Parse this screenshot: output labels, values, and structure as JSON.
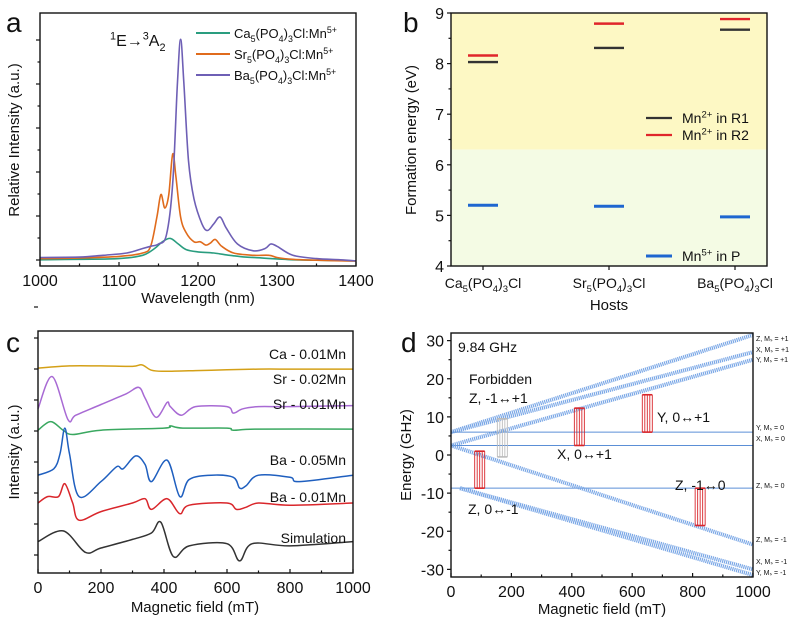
{
  "chart_data": [
    {
      "panel": "a",
      "type": "line",
      "title": "",
      "xlabel": "Wavelength (nm)",
      "ylabel": "Relative Intensity (a.u.)",
      "xlim": [
        1000,
        1400
      ],
      "ylim": [
        0,
        1.0
      ],
      "xticks": [
        "1000",
        "1100",
        "1200",
        "1300",
        "1400"
      ],
      "annotation": "¹E→³A₂",
      "legend_position": "top-right",
      "series": [
        {
          "name": "Ca5(PO4)3Cl:Mn5+",
          "color": "#2a9d7f",
          "x": [
            1000,
            1050,
            1100,
            1130,
            1145,
            1155,
            1165,
            1175,
            1185,
            1200,
            1220,
            1240,
            1260,
            1280,
            1300,
            1320,
            1350,
            1400
          ],
          "y": [
            0.01,
            0.012,
            0.015,
            0.03,
            0.06,
            0.09,
            0.105,
            0.08,
            0.055,
            0.045,
            0.04,
            0.03,
            0.022,
            0.018,
            0.014,
            0.01,
            0.008,
            0.005
          ]
        },
        {
          "name": "Sr5(PO4)3Cl:Mn5+",
          "color": "#e06b1c",
          "x": [
            1000,
            1050,
            1100,
            1130,
            1140,
            1148,
            1153,
            1158,
            1163,
            1168,
            1172,
            1178,
            1185,
            1195,
            1203,
            1210,
            1216,
            1222,
            1230,
            1245,
            1270,
            1290,
            1300,
            1320,
            1350,
            1400
          ],
          "y": [
            0.015,
            0.018,
            0.025,
            0.04,
            0.07,
            0.2,
            0.3,
            0.24,
            0.3,
            0.48,
            0.38,
            0.2,
            0.13,
            0.09,
            0.09,
            0.075,
            0.085,
            0.1,
            0.07,
            0.04,
            0.03,
            0.03,
            0.02,
            0.012,
            0.008,
            0.004
          ]
        },
        {
          "name": "Ba5(PO4)3Cl:Mn5+",
          "color": "#6e5fb5",
          "x": [
            1000,
            1050,
            1080,
            1110,
            1130,
            1140,
            1150,
            1160,
            1168,
            1174,
            1178,
            1182,
            1188,
            1195,
            1205,
            1212,
            1220,
            1228,
            1236,
            1250,
            1270,
            1285,
            1292,
            1300,
            1320,
            1350,
            1380,
            1400
          ],
          "y": [
            0.02,
            0.022,
            0.03,
            0.04,
            0.06,
            0.07,
            0.08,
            0.12,
            0.35,
            0.8,
            0.99,
            0.8,
            0.45,
            0.28,
            0.17,
            0.14,
            0.17,
            0.2,
            0.15,
            0.08,
            0.05,
            0.06,
            0.08,
            0.07,
            0.03,
            0.015,
            0.01,
            0.005
          ]
        }
      ]
    },
    {
      "panel": "b",
      "type": "scatter",
      "xlabel": "Hosts",
      "ylabel": "Formation energy (eV)",
      "ylim": [
        4,
        9
      ],
      "yticks": [
        "4",
        "5",
        "6",
        "7",
        "8",
        "9"
      ],
      "categories": [
        "Ca5(PO4)3Cl",
        "Sr5(PO4)3Cl",
        "Ba5(PO4)3Cl"
      ],
      "regions": [
        {
          "from": 6.3,
          "to": 9,
          "color": "#fdf8c4"
        },
        {
          "from": 4,
          "to": 6.3,
          "color": "#f4fbe4"
        }
      ],
      "series": [
        {
          "name": "Mn2+ in R1",
          "color": "#333333",
          "values": [
            8.03,
            8.31,
            8.67
          ]
        },
        {
          "name": "Mn2+ in R2",
          "color": "#e0262b",
          "values": [
            8.16,
            8.79,
            8.88
          ]
        },
        {
          "name": "Mn5+ in P",
          "color": "#1e66d0",
          "values": [
            5.2,
            5.18,
            4.97
          ]
        }
      ],
      "legend": [
        {
          "label": "Mn²⁺ in R1",
          "position": "middle-right"
        },
        {
          "label": "Mn²⁺ in R2",
          "position": "middle-right"
        },
        {
          "label": "Mn⁵⁺ in P",
          "position": "bottom-right"
        }
      ]
    },
    {
      "panel": "c",
      "type": "line",
      "xlabel": "Magnetic field (mT)",
      "ylabel": "Intensity (a.u.)",
      "xlim": [
        0,
        1000
      ],
      "xticks": [
        "0",
        "200",
        "400",
        "600",
        "800",
        "1000"
      ],
      "series": [
        {
          "name": "Ca - 0.01Mn",
          "color": "#d4a017",
          "offset": 9.1,
          "x": [
            0,
            100,
            200,
            300,
            330,
            360,
            400,
            500,
            600,
            700,
            800,
            900,
            1000
          ],
          "y": [
            0,
            0.1,
            0.1,
            0.08,
            0.15,
            -0.1,
            -0.15,
            -0.12,
            -0.08,
            -0.05,
            -0.05,
            -0.05,
            -0.05
          ]
        },
        {
          "name": "Sr - 0.02Mn",
          "color": "#a86ad4",
          "offset": 7.2,
          "x": [
            0,
            45,
            95,
            120,
            200,
            280,
            320,
            340,
            375,
            410,
            420,
            455,
            500,
            600,
            620,
            650,
            700,
            800,
            1000
          ],
          "y": [
            0,
            1.5,
            -0.5,
            -0.3,
            0.2,
            0.7,
            1.0,
            0.5,
            -0.4,
            0.3,
            0.1,
            -0.3,
            0.1,
            0.1,
            -0.2,
            0.0,
            0.1,
            0.1,
            0.15
          ]
        },
        {
          "name": "Sr - 0.01Mn",
          "color": "#3aa860",
          "offset": 6.2,
          "x": [
            0,
            40,
            80,
            110,
            200,
            400,
            420,
            460,
            600,
            620,
            700,
            1000
          ],
          "y": [
            0,
            0.4,
            0.0,
            -0.2,
            0.0,
            0.1,
            0.2,
            0.1,
            0.1,
            0.0,
            0.05,
            0.05
          ]
        },
        {
          "name": "Ba - 0.05Mn",
          "color": "#1f5fbf",
          "offset": 4.1,
          "x": [
            0,
            50,
            70,
            85,
            100,
            130,
            200,
            250,
            270,
            310,
            340,
            360,
            410,
            450,
            480,
            550,
            620,
            640,
            660,
            700,
            800,
            830,
            1000
          ],
          "y": [
            0,
            0.3,
            1.0,
            2.2,
            1.0,
            -1.0,
            -0.3,
            0.4,
            0.3,
            0.9,
            0.5,
            -0.3,
            0.7,
            -1.0,
            -0.2,
            0.0,
            -0.1,
            -0.6,
            -0.5,
            0.0,
            -0.1,
            -0.3,
            0.0
          ]
        },
        {
          "name": "Ba - 0.01Mn",
          "color": "#d9262b",
          "offset": 2.8,
          "x": [
            0,
            30,
            65,
            85,
            110,
            130,
            200,
            300,
            340,
            360,
            410,
            450,
            480,
            600,
            630,
            660,
            700,
            800,
            1000
          ],
          "y": [
            0,
            0.3,
            0.3,
            0.9,
            0.0,
            -0.8,
            -0.4,
            0.0,
            0.2,
            -0.3,
            0.2,
            -0.5,
            -0.1,
            0.0,
            -0.3,
            -0.2,
            0.0,
            -0.1,
            0.0
          ]
        },
        {
          "name": "Simulation",
          "color": "#333333",
          "offset": 1.0,
          "x": [
            0,
            80,
            150,
            200,
            300,
            360,
            390,
            430,
            480,
            600,
            640,
            680,
            800,
            1000
          ],
          "y": [
            0,
            0.5,
            -0.5,
            -0.3,
            0.1,
            0.4,
            0.9,
            -0.7,
            -0.2,
            -0.1,
            -0.9,
            -0.1,
            -0.2,
            0.0
          ]
        }
      ]
    },
    {
      "panel": "d",
      "type": "line",
      "xlabel": "Magnetic field (mT)",
      "ylabel": "Energy (GHz)",
      "xlim": [
        0,
        1000
      ],
      "ylim": [
        -32,
        32
      ],
      "xticks": [
        "0",
        "200",
        "400",
        "600",
        "800",
        "1000"
      ],
      "yticks": [
        "-30",
        "-20",
        "-10",
        "0",
        "10",
        "20",
        "30"
      ],
      "frequency_label": "9.84 GHz",
      "levels": [
        {
          "name": "Z, Ms = +1",
          "x": [
            0,
            1000
          ],
          "y": [
            6,
            31.5
          ]
        },
        {
          "name": "X, Ms = +1",
          "x": [
            0,
            1000
          ],
          "y": [
            6,
            27
          ]
        },
        {
          "name": "Y, Ms = +1",
          "x": [
            0,
            1000
          ],
          "y": [
            2.5,
            25
          ]
        },
        {
          "name": "Y, Ms = 0",
          "x": [
            0,
            1000
          ],
          "y": [
            6,
            6
          ]
        },
        {
          "name": "X, Ms = 0",
          "x": [
            0,
            1000
          ],
          "y": [
            2.5,
            2.5
          ]
        },
        {
          "name": "Z, Ms = 0",
          "x": [
            0,
            1000
          ],
          "y": [
            -8.7,
            -8.7
          ]
        },
        {
          "name": "Z, Ms = -1",
          "x": [
            0,
            1000
          ],
          "y": [
            2.5,
            -23.5
          ]
        },
        {
          "name": "X, Ms = -1",
          "x": [
            30,
            1000
          ],
          "y": [
            -8.7,
            -30
          ]
        },
        {
          "name": "Y, Ms = -1",
          "x": [
            30,
            1000
          ],
          "y": [
            -8.7,
            -31.5
          ]
        }
      ],
      "transitions": [
        {
          "label": "Z, 0↔-1",
          "field": 95,
          "from": -8.7,
          "to": 1.0,
          "color": "#d9262b"
        },
        {
          "label": "X, 0↔+1",
          "field": 425,
          "from": 2.5,
          "to": 12.3,
          "color": "#d9262b"
        },
        {
          "label": "Y, 0↔+1",
          "field": 650,
          "from": 6,
          "to": 15.8,
          "color": "#d9262b"
        },
        {
          "label": "Z, -1↔0",
          "field": 825,
          "from": -18.5,
          "to": -8.7,
          "color": "#d9262b"
        },
        {
          "label": "Forbidden Z, -1↔+1",
          "field": 170,
          "from": -0.5,
          "to": 9.5,
          "color": "#bbbbbb"
        }
      ]
    }
  ],
  "labels": {
    "panel_a": "a",
    "panel_b": "b",
    "panel_c": "c",
    "panel_d": "d",
    "forbidden": "Forbidden",
    "forbidden_transition": "Z, -1↔+1",
    "level_labels": [
      "Z, Mₛ = +1",
      "X, Mₛ = +1",
      "Y, Mₛ = +1",
      "Y, Mₛ = 0",
      "X, Mₛ = 0",
      "Z, Mₛ = 0",
      "Z, Mₛ = -1",
      "X, Mₛ = -1",
      "Y, Mₛ = -1"
    ]
  }
}
